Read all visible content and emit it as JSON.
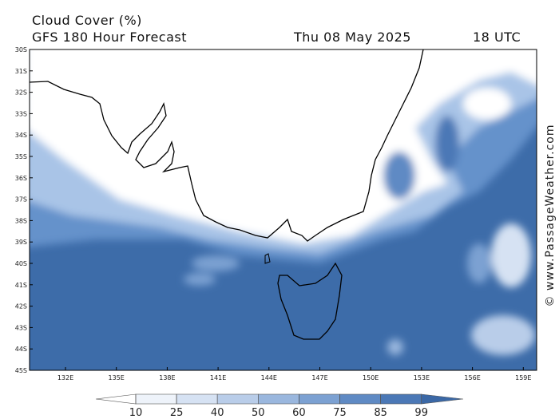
{
  "header": {
    "title": "Cloud Cover (%)",
    "model": "GFS 180 Hour Forecast",
    "date": "Thu 08 May 2025",
    "time": "18 UTC"
  },
  "watermark": "© www.PassageWeather.com",
  "map": {
    "lat_labels": [
      "30S",
      "31S",
      "32S",
      "33S",
      "34S",
      "35S",
      "36S",
      "37S",
      "38S",
      "39S",
      "40S",
      "41S",
      "42S",
      "43S",
      "44S",
      "45S"
    ],
    "lon_labels": [
      "132E",
      "135E",
      "138E",
      "141E",
      "144E",
      "147E",
      "150E",
      "153E",
      "156E",
      "159E"
    ]
  },
  "legend": {
    "ticks": [
      10,
      25,
      40,
      50,
      60,
      75,
      85,
      99
    ],
    "colors": [
      "#ffffff",
      "#eef3fa",
      "#d6e2f3",
      "#b9cde9",
      "#9ab7de",
      "#7ca1d2",
      "#5f8ac4",
      "#4b78b6",
      "#3b68a6"
    ]
  }
}
